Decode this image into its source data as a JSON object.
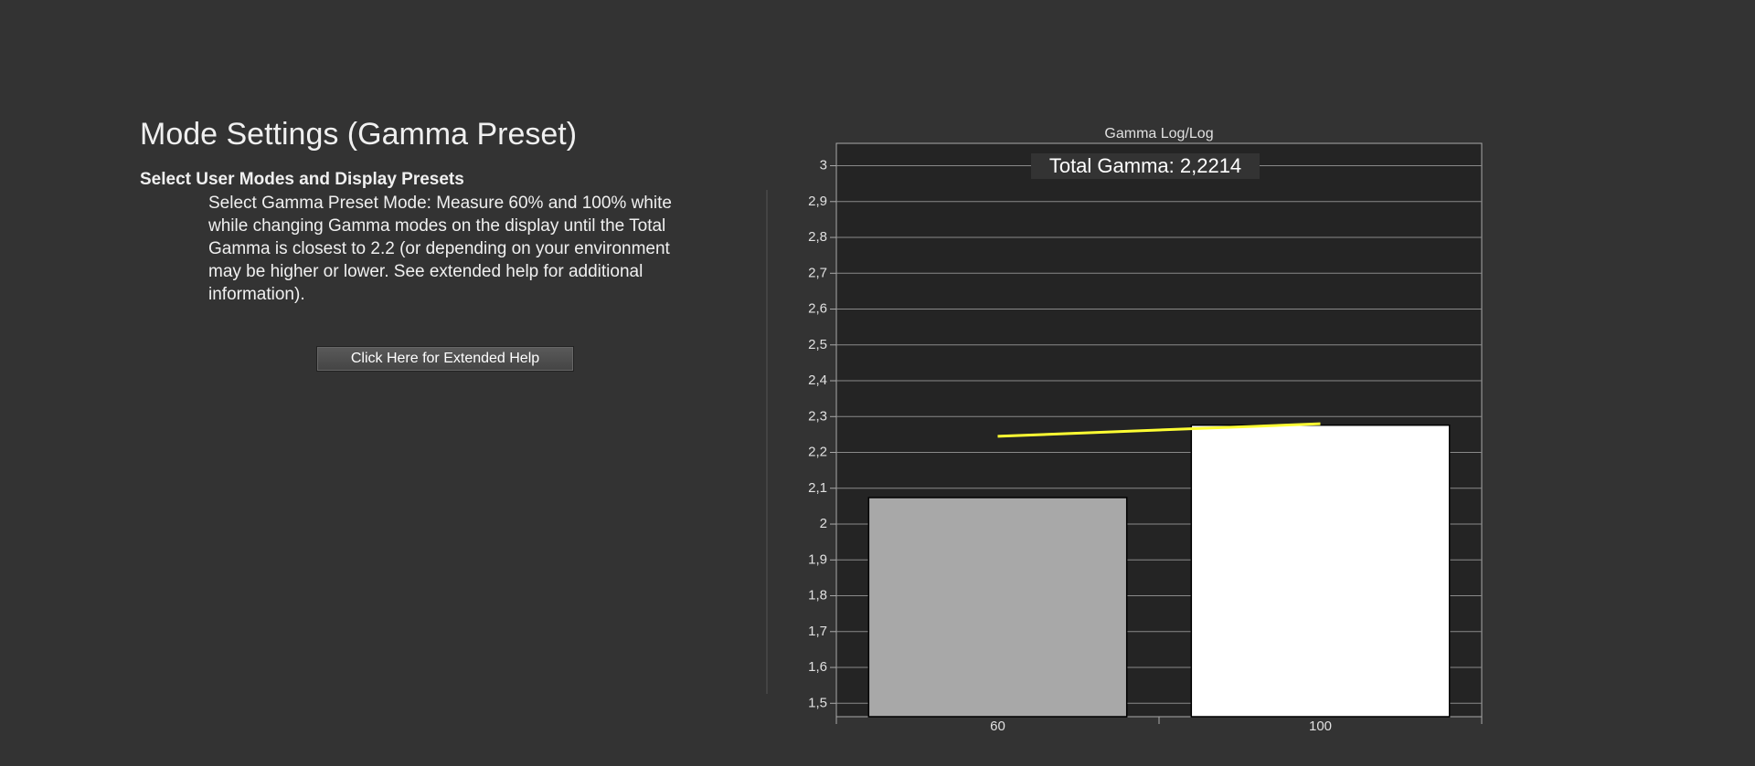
{
  "page": {
    "title": "Mode Settings (Gamma Preset)",
    "section_heading": "Select User Modes and Display Presets",
    "instructions": "Select Gamma Preset Mode: Measure 60% and 100% white while changing Gamma modes on the display until the Total Gamma is closest to 2.2 (or depending on your environment may be higher or lower. See extended help for additional information).",
    "help_button": "Click Here for Extended Help"
  },
  "chart_data": {
    "type": "bar",
    "title": "Gamma Log/Log",
    "annotation": "Total Gamma: 2,2214",
    "categories": [
      "60",
      "100"
    ],
    "series": [
      {
        "type": "bar",
        "values": [
          2.074,
          2.276
        ],
        "colors": [
          "#a8a8a8",
          "#ffffff"
        ]
      },
      {
        "type": "line",
        "values": [
          2.245,
          2.28
        ],
        "color": "#ffff33"
      }
    ],
    "ylim": [
      1.4625,
      3.0625
    ],
    "yticks": [
      {
        "value": 1.5,
        "label": "1,5"
      },
      {
        "value": 1.6,
        "label": "1,6"
      },
      {
        "value": 1.7,
        "label": "1,7"
      },
      {
        "value": 1.8,
        "label": "1,8"
      },
      {
        "value": 1.9,
        "label": "1,9"
      },
      2,
      {
        "value": 2.1,
        "label": "2,1"
      },
      {
        "value": 2.2,
        "label": "2,2"
      },
      {
        "value": 2.3,
        "label": "2,3"
      },
      {
        "value": 2.4,
        "label": "2,4"
      },
      {
        "value": 2.5,
        "label": "2,5"
      },
      {
        "value": 2.6,
        "label": "2,6"
      },
      {
        "value": 2.7,
        "label": "2,7"
      },
      {
        "value": 2.8,
        "label": "2,8"
      },
      {
        "value": 2.9,
        "label": "2,9"
      },
      3
    ],
    "grid": true
  }
}
